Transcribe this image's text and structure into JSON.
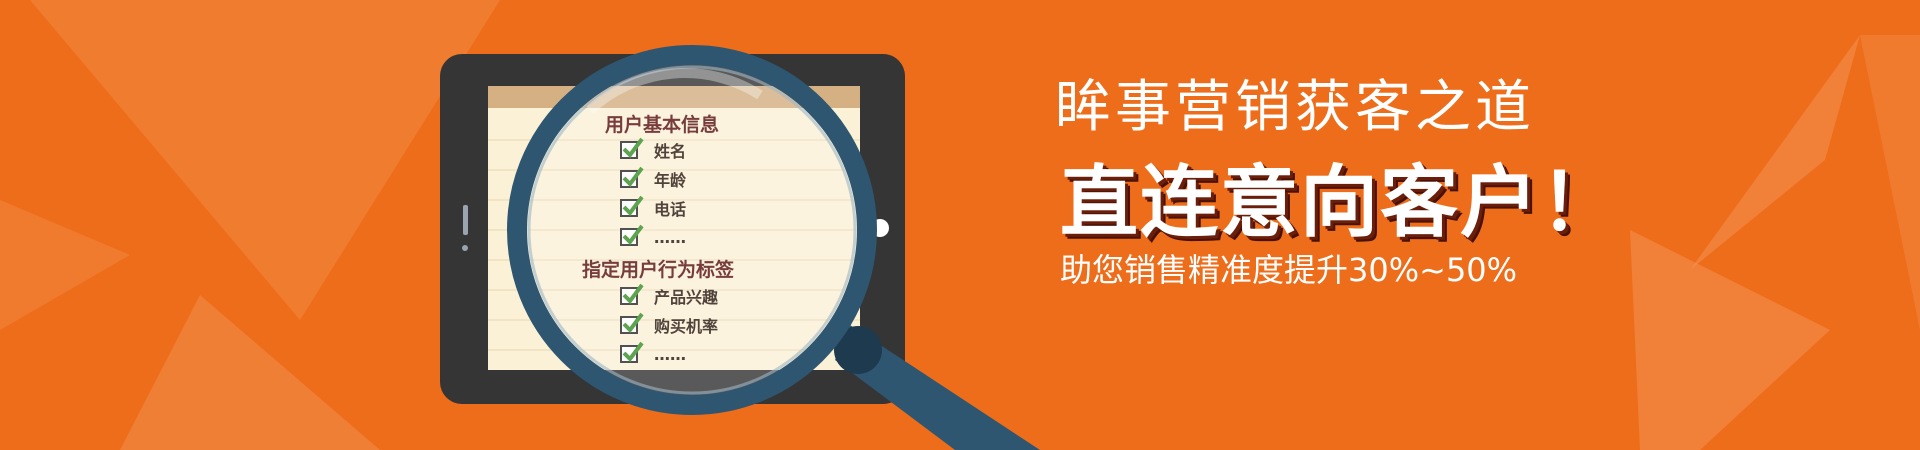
{
  "colors": {
    "background": "#EE6D1A",
    "accent_blue": "#2E5670",
    "check_green": "#3A8F2A"
  },
  "checklist": {
    "basic_info": {
      "title": "用户基本信息",
      "items": [
        "姓名",
        "年龄",
        "电话",
        "……"
      ]
    },
    "behavior_tags": {
      "title": "指定用户行为标签",
      "items": [
        "产品兴趣",
        "购买机率",
        "……"
      ]
    }
  },
  "banner": {
    "headline": "眸事营销获客之道",
    "slogan": "直连意向客户！",
    "subline": "助您销售精准度提升30%~50%"
  },
  "icons": {
    "tablet": "tablet-icon",
    "magnifier": "magnifying-glass-icon",
    "checkbox": "checked-checkbox-icon"
  }
}
